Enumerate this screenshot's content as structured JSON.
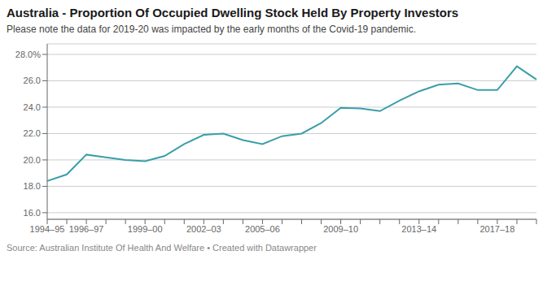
{
  "chart_data": {
    "type": "line",
    "title": "Australia - Proportion Of Occupied Dwelling Stock Held By Property Investors",
    "subtitle": "Please note the data for 2019-20 was impacted by the early months of the Covid-19 pandemic.",
    "source": "Source: Australian Institute Of Health And Welfare • Created with Datawrapper",
    "categories": [
      "1994–95",
      null,
      "1996–97",
      null,
      null,
      "1999–00",
      null,
      null,
      "2002–03",
      null,
      null,
      "2005–06",
      null,
      null,
      null,
      "2009–10",
      null,
      null,
      null,
      "2013–14",
      null,
      null,
      null,
      "2017–18",
      null,
      null
    ],
    "values": [
      18.4,
      18.9,
      20.4,
      20.2,
      20.0,
      19.9,
      20.3,
      21.2,
      21.9,
      22.0,
      21.5,
      21.2,
      21.8,
      22.0,
      22.8,
      23.95,
      23.9,
      23.7,
      24.5,
      25.2,
      25.7,
      25.8,
      25.3,
      25.3,
      27.1,
      26.1
    ],
    "color": "#3a9eaa",
    "ylim": [
      15.5,
      28.8
    ],
    "yticks": [
      {
        "value": 16.0,
        "label": "16.0"
      },
      {
        "value": 18.0,
        "label": "18.0"
      },
      {
        "value": 20.0,
        "label": "20.0"
      },
      {
        "value": 22.0,
        "label": "22.0"
      },
      {
        "value": 24.0,
        "label": "24.0"
      },
      {
        "value": 26.0,
        "label": "26.0"
      },
      {
        "value": 28.0,
        "label": "28.0%"
      }
    ],
    "grid": true
  }
}
